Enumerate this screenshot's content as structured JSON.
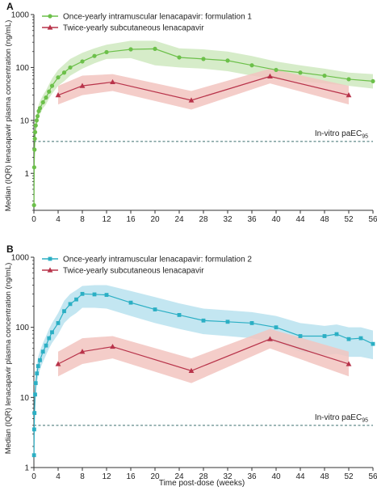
{
  "figure": {
    "x_axis_label": "Time post-dose (weeks)",
    "y_axis_label": "Median (IQR) lenacapavir plasma concentration (ng/mL)"
  },
  "chart_data": [
    {
      "panel": "A",
      "type": "line",
      "title": "",
      "xlabel": "",
      "ylabel": "Median (IQR) lenacapavir plasma concentration (ng/mL)",
      "x_ticks": [
        "0",
        "4",
        "8",
        "12",
        "16",
        "20",
        "24",
        "28",
        "32",
        "36",
        "40",
        "44",
        "48",
        "52",
        "56"
      ],
      "y_ticks": [
        "1",
        "10",
        "100",
        "1000"
      ],
      "xlim": [
        0,
        56
      ],
      "ylim": [
        0.2,
        1000
      ],
      "y_scale": "log",
      "grid": false,
      "legend_position": "top-left",
      "reference": {
        "label_main": "In-vitro paEC",
        "label_sub": "95",
        "value": 4
      },
      "series": [
        {
          "name": "Once-yearly intramuscular lenacapavir: formulation 1",
          "color": "#6cc04a",
          "band_color": "#cfe9bf",
          "marker": "circle",
          "x": [
            0.02,
            0.05,
            0.1,
            0.15,
            0.2,
            0.3,
            0.45,
            0.6,
            0.8,
            1,
            1.5,
            2,
            2.5,
            3,
            4,
            5,
            6,
            8,
            10,
            12,
            16,
            20,
            24,
            28,
            32,
            36,
            40,
            44,
            48,
            52,
            56
          ],
          "y": [
            0.25,
            1.3,
            2.8,
            4.5,
            6,
            8,
            10,
            12,
            15,
            17,
            22,
            27,
            35,
            45,
            65,
            80,
            100,
            130,
            165,
            195,
            220,
            225,
            155,
            145,
            135,
            110,
            90,
            80,
            70,
            60,
            55
          ],
          "q1": [
            0.2,
            1,
            2,
            3.3,
            4.5,
            6,
            7.5,
            9,
            11,
            13,
            17,
            20,
            26,
            32,
            45,
            55,
            70,
            95,
            120,
            145,
            150,
            110,
            100,
            95,
            85,
            70,
            60,
            55,
            50,
            45,
            40
          ],
          "q3": [
            0.35,
            1.8,
            3.8,
            6,
            8,
            10.5,
            13,
            16,
            20,
            23,
            30,
            37,
            48,
            62,
            90,
            115,
            145,
            190,
            230,
            270,
            320,
            320,
            230,
            220,
            200,
            165,
            130,
            110,
            95,
            80,
            75
          ]
        },
        {
          "name": "Twice-yearly subcutaneous lenacapavir",
          "color": "#b8334a",
          "band_color": "#f2c4c0",
          "marker": "triangle",
          "x": [
            4,
            8,
            13,
            26,
            39,
            52
          ],
          "y": [
            30,
            45,
            53,
            24,
            68,
            30
          ],
          "q1": [
            20,
            30,
            36,
            16,
            50,
            20
          ],
          "q3": [
            45,
            70,
            75,
            36,
            95,
            45
          ]
        }
      ]
    },
    {
      "panel": "B",
      "type": "line",
      "title": "",
      "xlabel": "Time post-dose (weeks)",
      "ylabel": "Median (IQR) lenacapavir plasma concentration (ng/mL)",
      "x_ticks": [
        "0",
        "4",
        "8",
        "12",
        "16",
        "20",
        "24",
        "28",
        "32",
        "36",
        "40",
        "44",
        "48",
        "52",
        "56"
      ],
      "y_ticks": [
        "1",
        "10",
        "100",
        "1000"
      ],
      "xlim": [
        0,
        56
      ],
      "ylim": [
        1,
        1000
      ],
      "y_scale": "log",
      "grid": false,
      "legend_position": "top-left",
      "reference": {
        "label_main": "In-vitro paEC",
        "label_sub": "95",
        "value": 4
      },
      "series": [
        {
          "name": "Once-yearly intramuscular lenacapavir: formulation 2",
          "color": "#2bafc4",
          "band_color": "#b9e2ee",
          "marker": "square",
          "x": [
            0.02,
            0.05,
            0.1,
            0.2,
            0.3,
            0.5,
            0.7,
            1,
            1.5,
            2,
            2.5,
            3,
            4,
            5,
            6,
            7,
            8,
            10,
            12,
            16,
            20,
            24,
            28,
            32,
            36,
            40,
            44,
            48,
            50,
            52,
            54,
            56
          ],
          "y": [
            1.5,
            3.5,
            6,
            11,
            16,
            22,
            28,
            34,
            45,
            55,
            70,
            85,
            115,
            170,
            215,
            250,
            300,
            295,
            290,
            225,
            180,
            150,
            125,
            120,
            115,
            100,
            75,
            75,
            80,
            68,
            70,
            58
          ],
          "q1": [
            1.1,
            2.5,
            4.3,
            8,
            11,
            16,
            20,
            25,
            32,
            40,
            50,
            60,
            80,
            115,
            140,
            160,
            190,
            190,
            185,
            145,
            115,
            95,
            80,
            75,
            70,
            60,
            45,
            40,
            42,
            38,
            38,
            35
          ],
          "q3": [
            2.1,
            5,
            8.5,
            15,
            22,
            30,
            38,
            46,
            60,
            75,
            95,
            115,
            160,
            240,
            300,
            340,
            390,
            400,
            400,
            330,
            270,
            220,
            185,
            175,
            165,
            145,
            115,
            105,
            110,
            100,
            100,
            90
          ]
        },
        {
          "name": "Twice-yearly subcutaneous lenacapavir",
          "color": "#b8334a",
          "band_color": "#f2c4c0",
          "marker": "triangle",
          "x": [
            4,
            8,
            13,
            26,
            39,
            52
          ],
          "y": [
            30,
            45,
            53,
            24,
            68,
            30
          ],
          "q1": [
            20,
            30,
            36,
            16,
            50,
            20
          ],
          "q3": [
            45,
            70,
            75,
            36,
            95,
            45
          ]
        }
      ]
    }
  ]
}
